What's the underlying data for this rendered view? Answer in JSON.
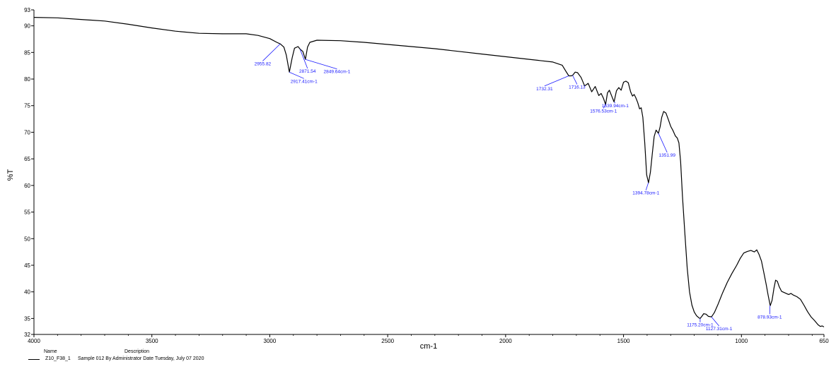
{
  "chart_data": {
    "type": "line",
    "title": "",
    "xlabel": "cm-1",
    "ylabel": "%T",
    "xlim": [
      4000,
      650
    ],
    "ylim": [
      32,
      93
    ],
    "x_reversed": true,
    "grid": false,
    "x_ticks": [
      "4000",
      "3500",
      "3000",
      "2500",
      "2000",
      "1500",
      "1000",
      "650"
    ],
    "y_ticks": [
      "32",
      "35",
      "40",
      "45",
      "50",
      "55",
      "60",
      "65",
      "70",
      "75",
      "80",
      "85",
      "90",
      "93"
    ],
    "series": [
      {
        "name": "Z10_F38_1",
        "color": "#000000",
        "points": [
          [
            4000,
            91.6
          ],
          [
            3900,
            91.5
          ],
          [
            3800,
            91.2
          ],
          [
            3700,
            90.9
          ],
          [
            3600,
            90.3
          ],
          [
            3500,
            89.6
          ],
          [
            3400,
            89.0
          ],
          [
            3300,
            88.6
          ],
          [
            3200,
            88.5
          ],
          [
            3100,
            88.5
          ],
          [
            3050,
            88.2
          ],
          [
            3000,
            87.6
          ],
          [
            2970,
            86.9
          ],
          [
            2955,
            86.6
          ],
          [
            2940,
            86.0
          ],
          [
            2930,
            84.5
          ],
          [
            2917,
            81.3
          ],
          [
            2905,
            84.0
          ],
          [
            2895,
            85.8
          ],
          [
            2880,
            86.1
          ],
          [
            2871,
            85.6
          ],
          [
            2860,
            85.2
          ],
          [
            2849,
            83.7
          ],
          [
            2840,
            86.0
          ],
          [
            2830,
            86.9
          ],
          [
            2800,
            87.3
          ],
          [
            2700,
            87.2
          ],
          [
            2600,
            86.9
          ],
          [
            2500,
            86.5
          ],
          [
            2400,
            86.1
          ],
          [
            2300,
            85.7
          ],
          [
            2200,
            85.2
          ],
          [
            2100,
            84.7
          ],
          [
            2000,
            84.2
          ],
          [
            1900,
            83.7
          ],
          [
            1800,
            83.2
          ],
          [
            1760,
            82.6
          ],
          [
            1745,
            81.5
          ],
          [
            1732,
            80.6
          ],
          [
            1722,
            80.6
          ],
          [
            1716,
            80.7
          ],
          [
            1705,
            81.3
          ],
          [
            1695,
            81.2
          ],
          [
            1680,
            80.3
          ],
          [
            1665,
            78.7
          ],
          [
            1650,
            79.2
          ],
          [
            1635,
            77.6
          ],
          [
            1620,
            78.6
          ],
          [
            1605,
            76.9
          ],
          [
            1595,
            77.3
          ],
          [
            1585,
            76.4
          ],
          [
            1576,
            75.2
          ],
          [
            1568,
            77.4
          ],
          [
            1560,
            77.9
          ],
          [
            1550,
            76.8
          ],
          [
            1540,
            75.7
          ],
          [
            1530,
            77.8
          ],
          [
            1520,
            78.4
          ],
          [
            1510,
            77.9
          ],
          [
            1500,
            79.4
          ],
          [
            1490,
            79.6
          ],
          [
            1480,
            79.3
          ],
          [
            1470,
            77.6
          ],
          [
            1462,
            76.8
          ],
          [
            1455,
            77.1
          ],
          [
            1448,
            76.5
          ],
          [
            1440,
            75.6
          ],
          [
            1432,
            74.4
          ],
          [
            1425,
            74.6
          ],
          [
            1418,
            72.8
          ],
          [
            1410,
            68.0
          ],
          [
            1402,
            62.0
          ],
          [
            1394,
            60.5
          ],
          [
            1386,
            62.5
          ],
          [
            1378,
            66.0
          ],
          [
            1370,
            69.2
          ],
          [
            1362,
            70.4
          ],
          [
            1352,
            69.8
          ],
          [
            1345,
            71.0
          ],
          [
            1338,
            72.8
          ],
          [
            1330,
            73.9
          ],
          [
            1320,
            73.6
          ],
          [
            1310,
            72.4
          ],
          [
            1300,
            71.1
          ],
          [
            1290,
            70.3
          ],
          [
            1280,
            69.3
          ],
          [
            1272,
            68.9
          ],
          [
            1265,
            68.0
          ],
          [
            1258,
            64.5
          ],
          [
            1250,
            58.0
          ],
          [
            1240,
            51.0
          ],
          [
            1230,
            44.5
          ],
          [
            1220,
            40.0
          ],
          [
            1210,
            37.5
          ],
          [
            1200,
            36.2
          ],
          [
            1190,
            35.5
          ],
          [
            1180,
            35.1
          ],
          [
            1175,
            35.0
          ],
          [
            1168,
            35.4
          ],
          [
            1160,
            35.9
          ],
          [
            1150,
            35.8
          ],
          [
            1140,
            35.4
          ],
          [
            1127,
            35.3
          ],
          [
            1115,
            36.1
          ],
          [
            1100,
            37.6
          ],
          [
            1080,
            39.8
          ],
          [
            1060,
            41.8
          ],
          [
            1040,
            43.5
          ],
          [
            1020,
            45.0
          ],
          [
            1005,
            46.3
          ],
          [
            990,
            47.3
          ],
          [
            975,
            47.6
          ],
          [
            960,
            47.8
          ],
          [
            945,
            47.5
          ],
          [
            935,
            47.9
          ],
          [
            925,
            47.0
          ],
          [
            915,
            45.8
          ],
          [
            905,
            43.6
          ],
          [
            895,
            41.4
          ],
          [
            887,
            39.4
          ],
          [
            878,
            37.4
          ],
          [
            870,
            38.4
          ],
          [
            862,
            40.7
          ],
          [
            855,
            42.2
          ],
          [
            848,
            42.0
          ],
          [
            840,
            41.0
          ],
          [
            830,
            40.1
          ],
          [
            815,
            39.8
          ],
          [
            800,
            39.5
          ],
          [
            790,
            39.7
          ],
          [
            780,
            39.4
          ],
          [
            765,
            39.1
          ],
          [
            750,
            38.6
          ],
          [
            735,
            37.5
          ],
          [
            720,
            36.3
          ],
          [
            705,
            35.3
          ],
          [
            690,
            34.6
          ],
          [
            675,
            33.8
          ],
          [
            665,
            33.5
          ],
          [
            658,
            33.6
          ],
          [
            650,
            33.4
          ]
        ]
      }
    ],
    "peak_labels": [
      {
        "text": "2955.82",
        "x": 2955.82,
        "y": 86.6,
        "label_x": 3030,
        "label_y": 82.6
      },
      {
        "text": "2917.41cm-1",
        "x": 2917.41,
        "y": 81.3,
        "label_x": 2855,
        "label_y": 79.3
      },
      {
        "text": "2871.54",
        "x": 2871.54,
        "y": 85.6,
        "label_x": 2840,
        "label_y": 81.2
      },
      {
        "text": "2849.64cm-1",
        "x": 2849.64,
        "y": 83.7,
        "label_x": 2715,
        "label_y": 81.1
      },
      {
        "text": "1732.31",
        "x": 1732.31,
        "y": 80.6,
        "label_x": 1835,
        "label_y": 77.9
      },
      {
        "text": "1716.13",
        "x": 1716.13,
        "y": 80.7,
        "label_x": 1697,
        "label_y": 78.2
      },
      {
        "text": "1539.94cm-1",
        "x": 1539.94,
        "y": 75.7,
        "label_x": 1535,
        "label_y": 74.7
      },
      {
        "text": "1576.53cm-1",
        "x": 1576.53,
        "y": 75.2,
        "label_x": 1585,
        "label_y": 73.7
      },
      {
        "text": "1351.99",
        "x": 1351.99,
        "y": 69.8,
        "label_x": 1315,
        "label_y": 65.4
      },
      {
        "text": "1394.78cm-1",
        "x": 1394.78,
        "y": 60.5,
        "label_x": 1405,
        "label_y": 58.3
      },
      {
        "text": "1175.20cm-1",
        "x": 1175.2,
        "y": 35.0,
        "label_x": 1175,
        "label_y": 33.5
      },
      {
        "text": "1127.31cm-1",
        "x": 1127.31,
        "y": 35.3,
        "label_x": 1095,
        "label_y": 32.8
      },
      {
        "text": "878.93cm-1",
        "x": 878.93,
        "y": 37.4,
        "label_x": 880,
        "label_y": 35.0
      }
    ]
  },
  "legend": {
    "name_header": "Name",
    "description_header": "Description",
    "rows": [
      {
        "name": "Z10_F38_1",
        "description": "Sample 012 By Administrator Date Tuesday, July 07 2020"
      }
    ]
  }
}
